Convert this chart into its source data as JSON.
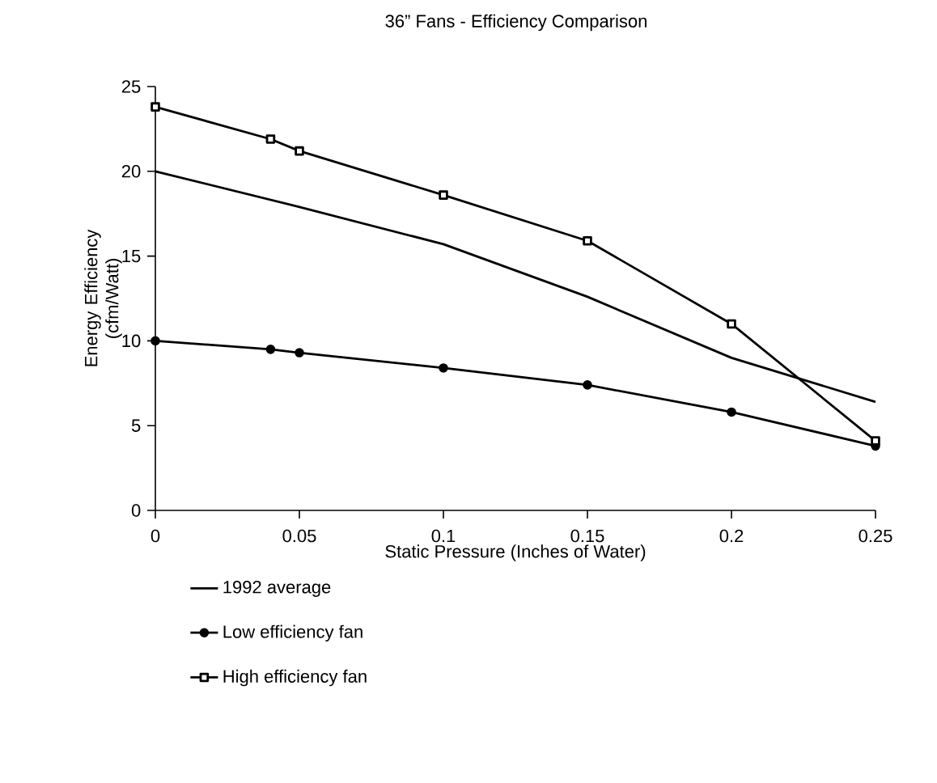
{
  "chart_data": {
    "type": "line",
    "title": "36” Fans - Efficiency Comparison",
    "xlabel": "Static Pressure (Inches of Water)",
    "ylabel": "Energy Efficiency (cfm/Watt)",
    "xlim": [
      0,
      0.25
    ],
    "xticks": [
      0,
      0.05,
      0.1,
      0.15,
      0.2,
      0.25
    ],
    "ylim": [
      0,
      25
    ],
    "yticks": [
      0,
      5,
      10,
      15,
      20,
      25
    ],
    "legend": "bottom",
    "grid": false,
    "series": [
      {
        "name": "1992 average",
        "color": "#000000",
        "marker": "none",
        "x": [
          0,
          0.05,
          0.1,
          0.15,
          0.2,
          0.25
        ],
        "values": [
          20,
          17.9,
          15.7,
          12.6,
          9.0,
          6.4
        ]
      },
      {
        "name": "Low efficiency  fan",
        "color": "#000000",
        "marker": "circle",
        "x": [
          0,
          0.04,
          0.05,
          0.1,
          0.15,
          0.2,
          0.25
        ],
        "values": [
          10.0,
          9.5,
          9.3,
          8.4,
          7.4,
          5.8,
          3.8
        ]
      },
      {
        "name": "High efficiency  fan",
        "color": "#000000",
        "marker": "square",
        "x": [
          0,
          0.04,
          0.05,
          0.1,
          0.15,
          0.2,
          0.25
        ],
        "values": [
          23.8,
          21.9,
          21.2,
          18.6,
          15.9,
          11.0,
          4.1
        ]
      }
    ]
  }
}
